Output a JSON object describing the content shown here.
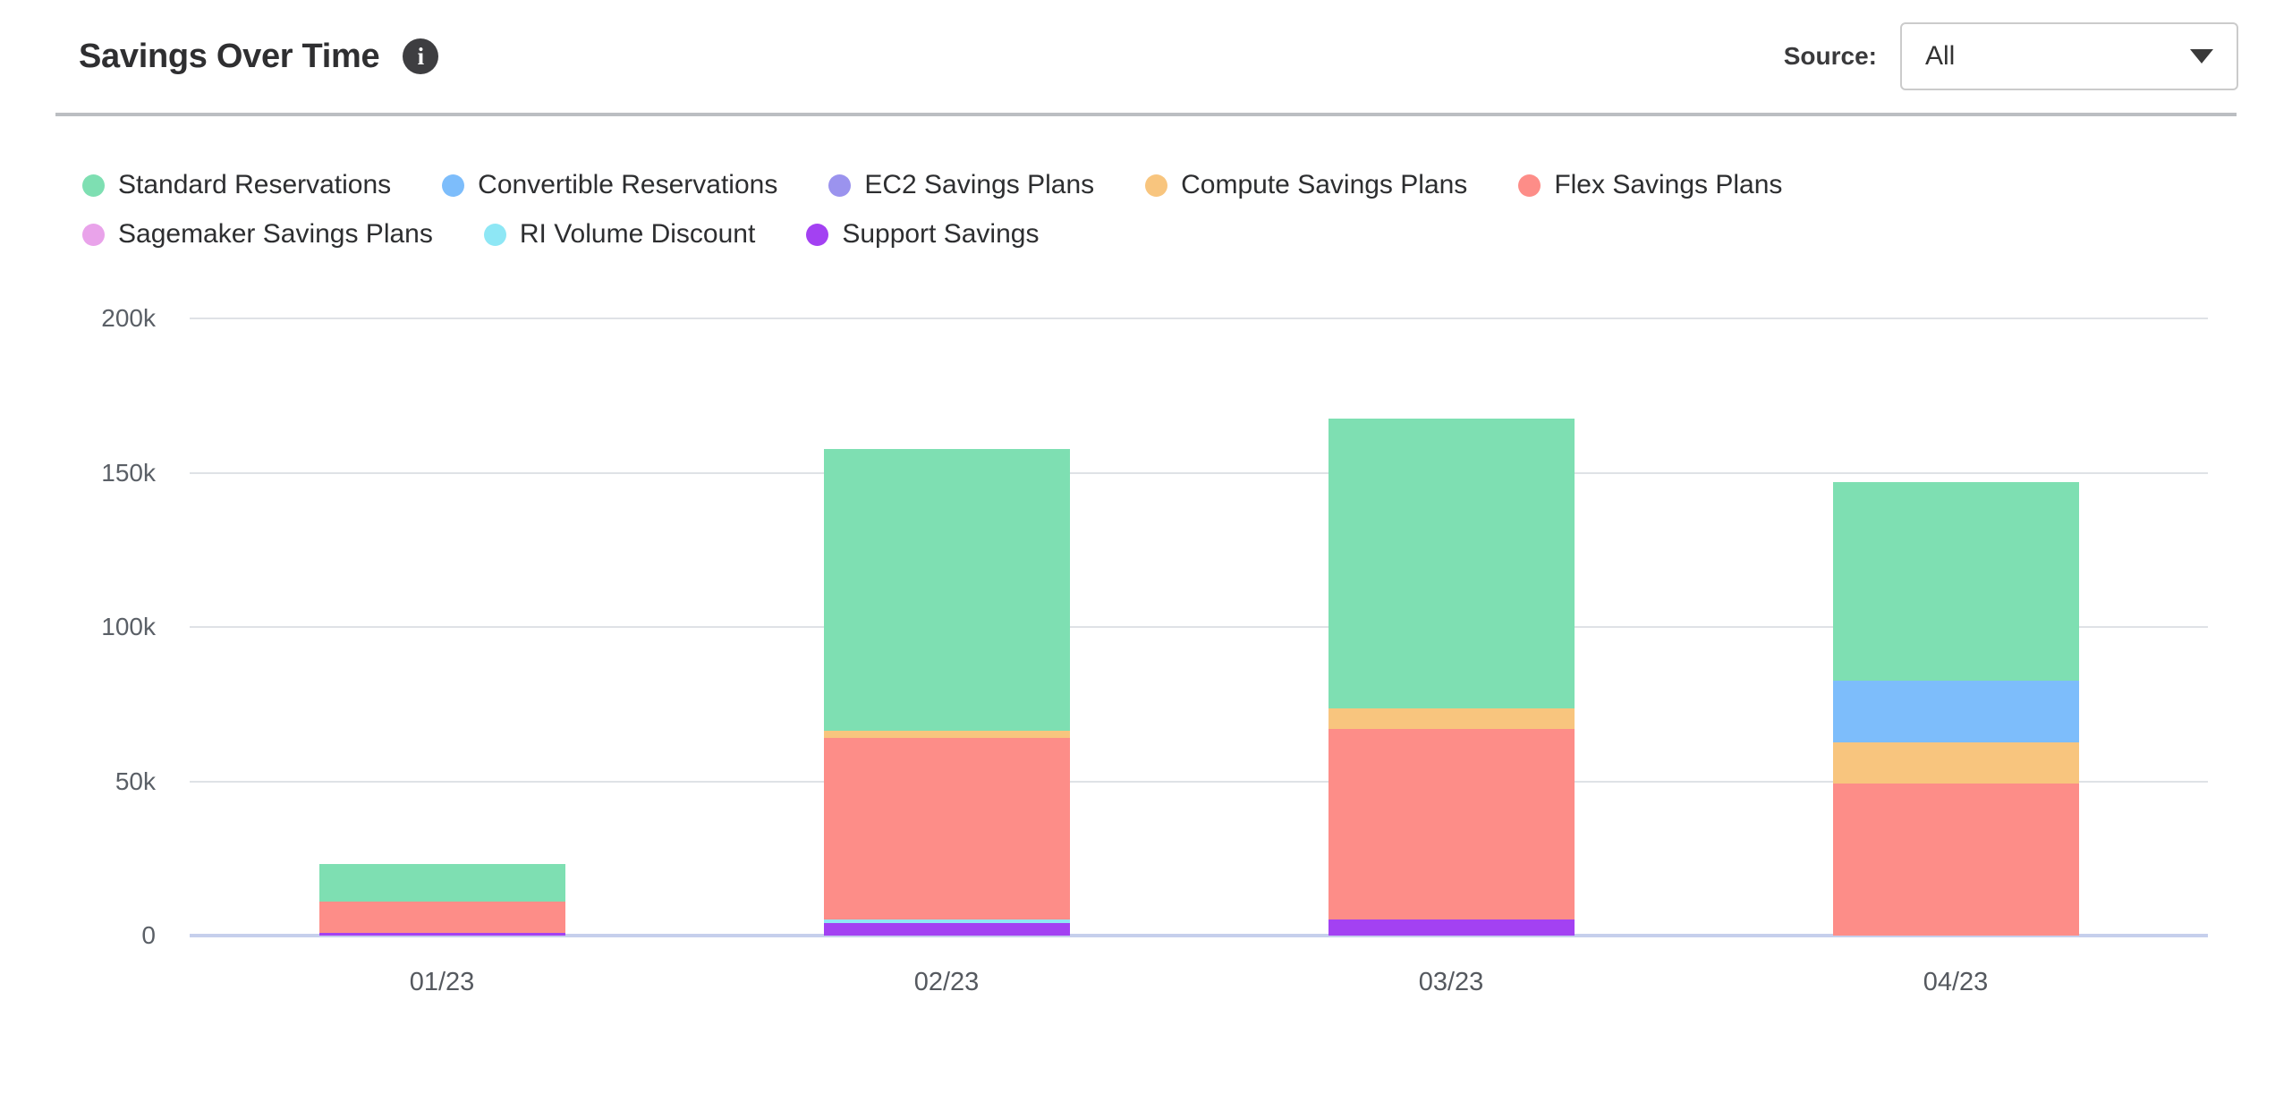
{
  "header": {
    "title": "Savings Over Time",
    "info_icon": "i",
    "source_label": "Source:",
    "source_value": "All"
  },
  "chart_data": {
    "type": "bar",
    "stacked": true,
    "title": "Savings Over Time",
    "categories": [
      "01/23",
      "02/23",
      "03/23",
      "04/23"
    ],
    "values_unit": "k",
    "series": [
      {
        "name": "Standard Reservations",
        "color": "#7edfb2",
        "values": [
          12.1,
          91.3,
          93.9,
          64.5
        ]
      },
      {
        "name": "Convertible Reservations",
        "color": "#7dbdfb",
        "values": [
          0,
          0,
          0,
          20
        ]
      },
      {
        "name": "EC2 Savings Plans",
        "color": "#9b93ee",
        "values": [
          0,
          0,
          0,
          0
        ]
      },
      {
        "name": "Compute Savings Plans",
        "color": "#f8c57e",
        "values": [
          0,
          2.5,
          6.6,
          13.2
        ]
      },
      {
        "name": "Flex Savings Plans",
        "color": "#fd8d88",
        "values": [
          10,
          58.8,
          61.8,
          49.3
        ]
      },
      {
        "name": "Sagemaker Savings Plans",
        "color": "#e9a3ea",
        "values": [
          0,
          0,
          0,
          0
        ]
      },
      {
        "name": "RI Volume Discount",
        "color": "#8ee7f5",
        "values": [
          0,
          1.2,
          0,
          0
        ]
      },
      {
        "name": "Support Savings",
        "color": "#a341f2",
        "values": [
          1,
          4,
          5.1,
          0
        ]
      }
    ],
    "stack_order_bottom_to_top": [
      "Support Savings",
      "RI Volume Discount",
      "Sagemaker Savings Plans",
      "Flex Savings Plans",
      "Compute Savings Plans",
      "EC2 Savings Plans",
      "Convertible Reservations",
      "Standard Reservations"
    ],
    "totals": [
      23.1,
      157.8,
      167.4,
      147.0
    ],
    "y_axis": {
      "max": 200,
      "ticks": [
        {
          "value": 0,
          "label": "0"
        },
        {
          "value": 50,
          "label": "50k"
        },
        {
          "value": 100,
          "label": "100k"
        },
        {
          "value": 150,
          "label": "150k"
        },
        {
          "value": 200,
          "label": "200k"
        }
      ]
    },
    "grid": true,
    "legend_position": "top"
  }
}
